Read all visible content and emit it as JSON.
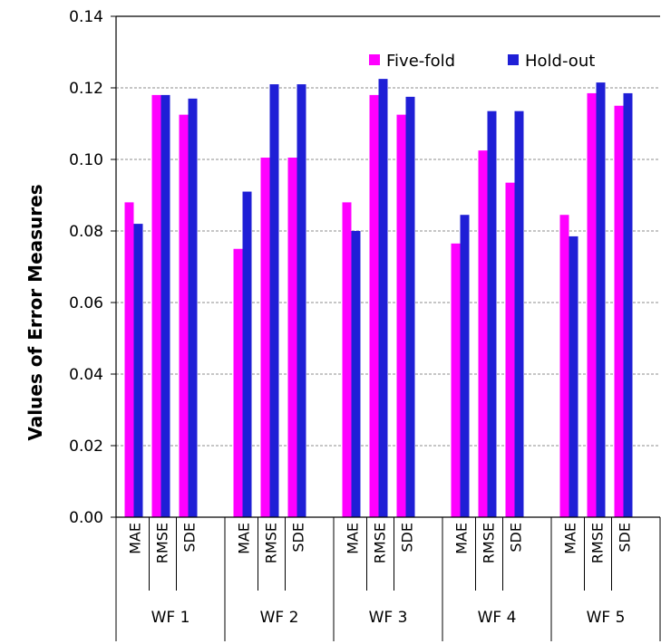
{
  "chart_data": {
    "type": "bar",
    "title": "",
    "xlabel": "",
    "ylabel": "Values of Error Measures",
    "ylim": [
      0,
      0.14
    ],
    "yticks": [
      "0.00",
      "0.02",
      "0.04",
      "0.06",
      "0.08",
      "0.10",
      "0.12",
      "0.14"
    ],
    "grid": true,
    "legend_position": "top-right",
    "groups": [
      "WF 1",
      "WF 2",
      "WF 3",
      "WF 4",
      "WF 5"
    ],
    "categories": [
      "MAE",
      "RMSE",
      "SDE"
    ],
    "series": [
      {
        "name": "Five-fold",
        "color": "#ff00ff",
        "values": [
          [
            0.088,
            0.118,
            0.1125
          ],
          [
            0.075,
            0.1005,
            0.1005
          ],
          [
            0.088,
            0.118,
            0.1125
          ],
          [
            0.0765,
            0.1025,
            0.0935
          ],
          [
            0.0845,
            0.1185,
            0.115
          ]
        ]
      },
      {
        "name": "Hold-out",
        "color": "#1f1fd6",
        "values": [
          [
            0.082,
            0.118,
            0.117
          ],
          [
            0.091,
            0.121,
            0.121
          ],
          [
            0.08,
            0.1225,
            0.1175
          ],
          [
            0.0845,
            0.1135,
            0.1135
          ],
          [
            0.0785,
            0.1215,
            0.1185
          ]
        ]
      }
    ]
  }
}
